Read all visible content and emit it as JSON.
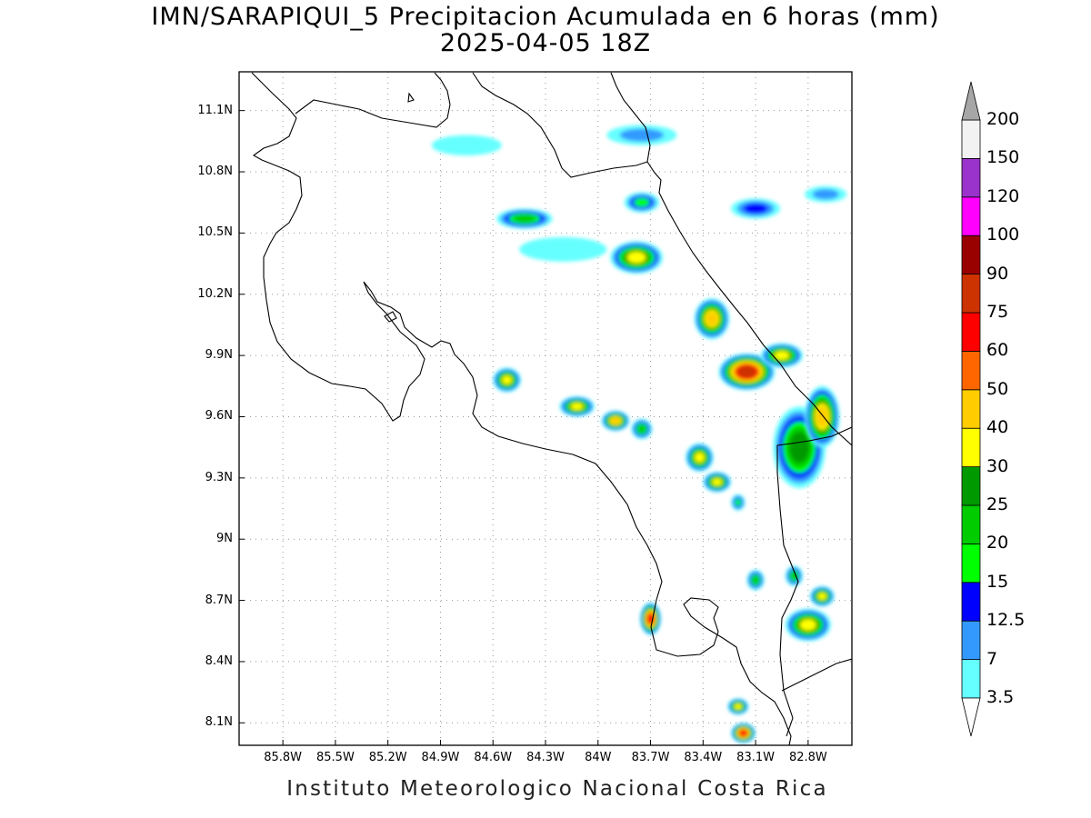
{
  "title_line1": "IMN/SARAPIQUI_5 Precipitacion Acumulada en 6 horas (mm)",
  "title_line2": "2025-04-05 18Z",
  "footer": "Instituto Meteorologico Nacional Costa Rica",
  "lat_ticks": [
    {
      "label": "11.1N",
      "lat": 11.1
    },
    {
      "label": "10.8N",
      "lat": 10.8
    },
    {
      "label": "10.5N",
      "lat": 10.5
    },
    {
      "label": "10.2N",
      "lat": 10.2
    },
    {
      "label": "9.9N",
      "lat": 9.9
    },
    {
      "label": "9.6N",
      "lat": 9.6
    },
    {
      "label": "9.3N",
      "lat": 9.3
    },
    {
      "label": "9N",
      "lat": 9.0
    },
    {
      "label": "8.7N",
      "lat": 8.7
    },
    {
      "label": "8.4N",
      "lat": 8.4
    },
    {
      "label": "8.1N",
      "lat": 8.1
    }
  ],
  "lon_ticks": [
    {
      "label": "85.8W",
      "lon": -85.8
    },
    {
      "label": "85.5W",
      "lon": -85.5
    },
    {
      "label": "85.2W",
      "lon": -85.2
    },
    {
      "label": "84.9W",
      "lon": -84.9
    },
    {
      "label": "84.6W",
      "lon": -84.6
    },
    {
      "label": "84.3W",
      "lon": -84.3
    },
    {
      "label": "84W",
      "lon": -84.0
    },
    {
      "label": "83.7W",
      "lon": -83.7
    },
    {
      "label": "83.4W",
      "lon": -83.4
    },
    {
      "label": "83.1W",
      "lon": -83.1
    },
    {
      "label": "82.8W",
      "lon": -82.8
    }
  ],
  "colorbar": {
    "labels": [
      "3.5",
      "7",
      "12.5",
      "15",
      "20",
      "25",
      "30",
      "40",
      "50",
      "60",
      "75",
      "90",
      "100",
      "120",
      "150",
      "200"
    ],
    "colors": [
      "#66ffff",
      "#3399ff",
      "#0000ff",
      "#00ff00",
      "#00cc00",
      "#009900",
      "#ffff00",
      "#ffcc00",
      "#ff6600",
      "#ff0000",
      "#cc3300",
      "#990000",
      "#ff00ff",
      "#9933cc",
      "#f2f2f2"
    ],
    "top_triangle_color": "#a6a6a6",
    "bottom_triangle_color": "#ffffff"
  },
  "map": {
    "domain": {
      "lon_min": -86.05,
      "lon_max": -82.55,
      "lat_min": 7.99,
      "lat_max": 11.29
    },
    "precip_cells": [
      {
        "lon": -83.15,
        "lat": 9.82,
        "rx": 0.16,
        "ry": 0.09,
        "value": 75
      },
      {
        "lon": -83.35,
        "lat": 10.08,
        "rx": 0.1,
        "ry": 0.1,
        "value": 40
      },
      {
        "lon": -83.78,
        "lat": 10.38,
        "rx": 0.15,
        "ry": 0.08,
        "value": 30
      },
      {
        "lon": -84.42,
        "lat": 10.57,
        "rx": 0.16,
        "ry": 0.05,
        "value": 20
      },
      {
        "lon": -83.75,
        "lat": 10.65,
        "rx": 0.1,
        "ry": 0.05,
        "value": 15
      },
      {
        "lon": -83.1,
        "lat": 10.62,
        "rx": 0.14,
        "ry": 0.05,
        "value": 12.5
      },
      {
        "lon": -82.85,
        "lat": 9.45,
        "rx": 0.15,
        "ry": 0.2,
        "value": 25
      },
      {
        "lon": -82.72,
        "lat": 9.6,
        "rx": 0.1,
        "ry": 0.15,
        "value": 40
      },
      {
        "lon": -82.95,
        "lat": 9.9,
        "rx": 0.12,
        "ry": 0.06,
        "value": 30
      },
      {
        "lon": -84.52,
        "lat": 9.78,
        "rx": 0.08,
        "ry": 0.06,
        "value": 30
      },
      {
        "lon": -84.12,
        "lat": 9.65,
        "rx": 0.1,
        "ry": 0.05,
        "value": 30
      },
      {
        "lon": -83.9,
        "lat": 9.58,
        "rx": 0.08,
        "ry": 0.05,
        "value": 40
      },
      {
        "lon": -83.75,
        "lat": 9.54,
        "rx": 0.06,
        "ry": 0.05,
        "value": 20
      },
      {
        "lon": -83.42,
        "lat": 9.4,
        "rx": 0.08,
        "ry": 0.07,
        "value": 30
      },
      {
        "lon": -83.32,
        "lat": 9.28,
        "rx": 0.08,
        "ry": 0.05,
        "value": 30
      },
      {
        "lon": -83.2,
        "lat": 9.18,
        "rx": 0.04,
        "ry": 0.04,
        "value": 15
      },
      {
        "lon": -83.7,
        "lat": 8.61,
        "rx": 0.06,
        "ry": 0.08,
        "value": 60
      },
      {
        "lon": -82.8,
        "lat": 8.58,
        "rx": 0.13,
        "ry": 0.08,
        "value": 30
      },
      {
        "lon": -82.72,
        "lat": 8.72,
        "rx": 0.07,
        "ry": 0.05,
        "value": 30
      },
      {
        "lon": -83.1,
        "lat": 8.8,
        "rx": 0.05,
        "ry": 0.05,
        "value": 20
      },
      {
        "lon": -82.88,
        "lat": 8.82,
        "rx": 0.05,
        "ry": 0.05,
        "value": 20
      },
      {
        "lon": -83.2,
        "lat": 8.18,
        "rx": 0.06,
        "ry": 0.04,
        "value": 30
      },
      {
        "lon": -83.17,
        "lat": 8.05,
        "rx": 0.07,
        "ry": 0.05,
        "value": 60
      },
      {
        "lon": -84.75,
        "lat": 10.93,
        "rx": 0.2,
        "ry": 0.05,
        "value": 3.5
      },
      {
        "lon": -83.75,
        "lat": 10.98,
        "rx": 0.2,
        "ry": 0.05,
        "value": 7
      },
      {
        "lon": -84.2,
        "lat": 10.42,
        "rx": 0.25,
        "ry": 0.06,
        "value": 3.5
      },
      {
        "lon": -82.7,
        "lat": 10.69,
        "rx": 0.12,
        "ry": 0.04,
        "value": 7
      }
    ]
  }
}
